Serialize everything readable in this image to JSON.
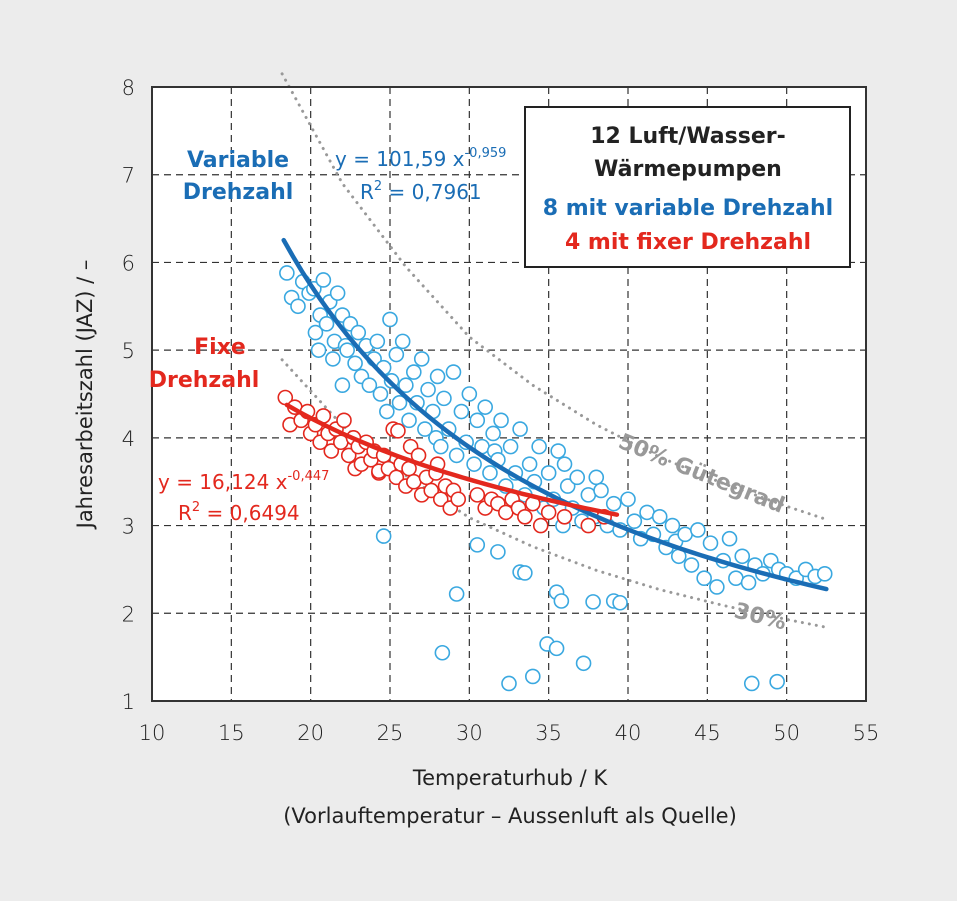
{
  "chart_data": {
    "type": "scatter",
    "xlabel": "Temperaturhub / K",
    "xlabel_sub": "(Vorlauftemperatur – Aussenluft als Quelle)",
    "ylabel": "Jahresarbeitszahl (JAZ) / –",
    "xlim": [
      10,
      55
    ],
    "ylim": [
      1,
      8
    ],
    "xticks": [
      "10",
      "15",
      "20",
      "25",
      "30",
      "35",
      "40",
      "45",
      "50",
      "55"
    ],
    "yticks": [
      "1",
      "2",
      "3",
      "4",
      "5",
      "6",
      "7",
      "8"
    ],
    "grid": true,
    "legend_box": {
      "line1": "12 Luft/Wasser-",
      "line2": "Wärmepumpen",
      "line3": "8 mit variable Drehzahl",
      "line4": "4 mit fixer Drehzahl",
      "placement": "top-right"
    },
    "colors": {
      "variable_points": "#3aa8e0",
      "variable_fit": "#1a6db5",
      "fixed": "#e3281e",
      "guetegrad": "#999999"
    },
    "series": [
      {
        "name": "Variable Drehzahl",
        "name_line1": "Variable",
        "name_line2": "Drehzahl",
        "fit": {
          "a": 101.59,
          "b": -0.959,
          "range": [
            18.3,
            52.5
          ]
        },
        "equation": "y = 101,59 x",
        "exponent": "-0,959",
        "r2_label": "R",
        "r2_sup": "2",
        "r2_value": " = 0,7961",
        "points": [
          [
            18.5,
            5.88
          ],
          [
            18.8,
            5.6
          ],
          [
            19.2,
            5.5
          ],
          [
            19.5,
            5.78
          ],
          [
            19.9,
            5.65
          ],
          [
            20.2,
            5.7
          ],
          [
            20.3,
            5.2
          ],
          [
            20.5,
            5.0
          ],
          [
            20.6,
            5.4
          ],
          [
            20.8,
            5.8
          ],
          [
            21.0,
            5.3
          ],
          [
            21.2,
            5.55
          ],
          [
            21.4,
            4.9
          ],
          [
            21.5,
            5.1
          ],
          [
            21.7,
            5.65
          ],
          [
            22.0,
            5.4
          ],
          [
            22.0,
            4.6
          ],
          [
            22.2,
            5.05
          ],
          [
            22.3,
            5.0
          ],
          [
            22.5,
            5.3
          ],
          [
            22.8,
            4.85
          ],
          [
            23.0,
            5.2
          ],
          [
            23.2,
            4.7
          ],
          [
            23.5,
            5.05
          ],
          [
            23.7,
            4.6
          ],
          [
            24.0,
            4.9
          ],
          [
            24.2,
            5.1
          ],
          [
            24.4,
            4.5
          ],
          [
            24.6,
            4.8
          ],
          [
            24.8,
            4.3
          ],
          [
            25.0,
            5.35
          ],
          [
            25.1,
            4.65
          ],
          [
            25.4,
            4.95
          ],
          [
            25.6,
            4.4
          ],
          [
            25.8,
            5.1
          ],
          [
            26.0,
            4.6
          ],
          [
            26.2,
            4.2
          ],
          [
            26.5,
            4.75
          ],
          [
            26.7,
            4.4
          ],
          [
            27.0,
            4.9
          ],
          [
            27.2,
            4.1
          ],
          [
            27.4,
            4.55
          ],
          [
            27.7,
            4.3
          ],
          [
            27.9,
            4.0
          ],
          [
            28.0,
            4.7
          ],
          [
            28.2,
            3.9
          ],
          [
            28.4,
            4.45
          ],
          [
            28.7,
            4.1
          ],
          [
            29.0,
            4.75
          ],
          [
            29.2,
            3.8
          ],
          [
            29.5,
            4.3
          ],
          [
            29.8,
            3.95
          ],
          [
            30.0,
            4.5
          ],
          [
            30.3,
            3.7
          ],
          [
            30.5,
            4.2
          ],
          [
            30.8,
            3.9
          ],
          [
            31.0,
            4.35
          ],
          [
            31.3,
            3.6
          ],
          [
            31.5,
            4.05
          ],
          [
            31.6,
            3.85
          ],
          [
            31.8,
            3.75
          ],
          [
            32.0,
            4.2
          ],
          [
            32.3,
            3.45
          ],
          [
            32.6,
            3.9
          ],
          [
            32.9,
            3.6
          ],
          [
            33.2,
            4.1
          ],
          [
            33.5,
            3.35
          ],
          [
            33.8,
            3.7
          ],
          [
            34.1,
            3.5
          ],
          [
            34.4,
            3.9
          ],
          [
            34.7,
            3.2
          ],
          [
            35.0,
            3.6
          ],
          [
            35.3,
            3.3
          ],
          [
            35.6,
            3.85
          ],
          [
            35.9,
            3.0
          ],
          [
            36.0,
            3.7
          ],
          [
            36.2,
            3.45
          ],
          [
            36.5,
            3.2
          ],
          [
            36.8,
            3.55
          ],
          [
            37.1,
            3.05
          ],
          [
            37.5,
            3.35
          ],
          [
            37.9,
            3.1
          ],
          [
            38.0,
            3.55
          ],
          [
            38.3,
            3.4
          ],
          [
            38.7,
            3.0
          ],
          [
            39.1,
            3.25
          ],
          [
            39.5,
            2.95
          ],
          [
            40.0,
            3.3
          ],
          [
            40.4,
            3.05
          ],
          [
            40.8,
            2.85
          ],
          [
            41.2,
            3.15
          ],
          [
            41.6,
            2.9
          ],
          [
            42.0,
            3.1
          ],
          [
            42.4,
            2.75
          ],
          [
            42.8,
            3.0
          ],
          [
            43.0,
            2.82
          ],
          [
            43.2,
            2.65
          ],
          [
            43.6,
            2.9
          ],
          [
            44.0,
            2.55
          ],
          [
            44.4,
            2.95
          ],
          [
            44.8,
            2.4
          ],
          [
            45.2,
            2.8
          ],
          [
            45.6,
            2.3
          ],
          [
            46.0,
            2.6
          ],
          [
            46.4,
            2.85
          ],
          [
            46.8,
            2.4
          ],
          [
            47.2,
            2.65
          ],
          [
            47.6,
            2.35
          ],
          [
            48.0,
            2.55
          ],
          [
            48.5,
            2.45
          ],
          [
            49.0,
            2.6
          ],
          [
            49.5,
            2.5
          ],
          [
            50.0,
            2.45
          ],
          [
            50.6,
            2.4
          ],
          [
            51.2,
            2.5
          ],
          [
            51.8,
            2.42
          ],
          [
            52.4,
            2.45
          ],
          [
            24.6,
            2.88
          ],
          [
            29.2,
            2.22
          ],
          [
            28.3,
            1.55
          ],
          [
            30.5,
            2.78
          ],
          [
            31.8,
            2.7
          ],
          [
            33.2,
            2.47
          ],
          [
            33.5,
            2.46
          ],
          [
            32.5,
            1.2
          ],
          [
            34.0,
            1.28
          ],
          [
            34.9,
            1.65
          ],
          [
            35.5,
            1.6
          ],
          [
            35.5,
            2.24
          ],
          [
            35.8,
            2.14
          ],
          [
            37.2,
            1.43
          ],
          [
            37.8,
            2.13
          ],
          [
            39.1,
            2.14
          ],
          [
            39.5,
            2.12
          ],
          [
            47.8,
            1.2
          ],
          [
            49.4,
            1.22
          ]
        ]
      },
      {
        "name": "Fixe Drehzahl",
        "name_line1": "Fixe",
        "name_line2": "Drehzahl",
        "fit": {
          "a": 16.124,
          "b": -0.447,
          "range": [
            18.5,
            39.3
          ]
        },
        "equation": "y = 16,124 x",
        "exponent": "-0,447",
        "r2_label": "R",
        "r2_sup": "2",
        "r2_value": " = 0,6494",
        "points": [
          [
            18.4,
            4.46
          ],
          [
            18.7,
            4.15
          ],
          [
            19.0,
            4.35
          ],
          [
            19.4,
            4.2
          ],
          [
            19.8,
            4.3
          ],
          [
            20.0,
            4.05
          ],
          [
            20.3,
            4.15
          ],
          [
            20.6,
            3.95
          ],
          [
            20.8,
            4.25
          ],
          [
            21.1,
            4.05
          ],
          [
            21.3,
            3.85
          ],
          [
            21.6,
            4.1
          ],
          [
            21.9,
            3.95
          ],
          [
            22.1,
            4.2
          ],
          [
            22.4,
            3.8
          ],
          [
            22.7,
            4.0
          ],
          [
            22.8,
            3.65
          ],
          [
            23.0,
            3.9
          ],
          [
            23.2,
            3.7
          ],
          [
            23.5,
            3.95
          ],
          [
            23.8,
            3.75
          ],
          [
            24.0,
            3.85
          ],
          [
            24.3,
            3.6
          ],
          [
            24.3,
            3.62
          ],
          [
            24.6,
            3.8
          ],
          [
            24.9,
            3.65
          ],
          [
            25.2,
            4.1
          ],
          [
            25.4,
            3.55
          ],
          [
            25.5,
            4.08
          ],
          [
            25.7,
            3.7
          ],
          [
            26.0,
            3.45
          ],
          [
            26.2,
            3.65
          ],
          [
            26.3,
            3.9
          ],
          [
            26.5,
            3.5
          ],
          [
            26.8,
            3.8
          ],
          [
            27.0,
            3.35
          ],
          [
            27.3,
            3.55
          ],
          [
            27.6,
            3.4
          ],
          [
            27.9,
            3.6
          ],
          [
            28.0,
            3.7
          ],
          [
            28.2,
            3.3
          ],
          [
            28.5,
            3.45
          ],
          [
            28.8,
            3.2
          ],
          [
            29.0,
            3.4
          ],
          [
            29.3,
            3.3
          ],
          [
            30.5,
            3.35
          ],
          [
            31.0,
            3.2
          ],
          [
            31.4,
            3.3
          ],
          [
            31.8,
            3.25
          ],
          [
            32.3,
            3.15
          ],
          [
            32.7,
            3.3
          ],
          [
            33.1,
            3.2
          ],
          [
            33.5,
            3.1
          ],
          [
            34.0,
            3.25
          ],
          [
            34.5,
            3.0
          ],
          [
            35.0,
            3.15
          ],
          [
            36.0,
            3.1
          ],
          [
            37.5,
            3.0
          ],
          [
            38.5,
            3.1
          ]
        ]
      }
    ],
    "guetegrad": [
      {
        "label": "50% Gütegrad",
        "points": [
          [
            18.2,
            8.15
          ],
          [
            22,
            6.9
          ],
          [
            26,
            5.95
          ],
          [
            30,
            5.15
          ],
          [
            34,
            4.6
          ],
          [
            38,
            4.15
          ],
          [
            42,
            3.78
          ],
          [
            46,
            3.48
          ],
          [
            50,
            3.22
          ],
          [
            52.5,
            3.07
          ]
        ]
      },
      {
        "label": "30%",
        "points": [
          [
            18.2,
            4.89
          ],
          [
            22,
            4.14
          ],
          [
            26,
            3.57
          ],
          [
            30,
            3.09
          ],
          [
            34,
            2.76
          ],
          [
            38,
            2.49
          ],
          [
            42,
            2.27
          ],
          [
            46,
            2.09
          ],
          [
            50,
            1.93
          ],
          [
            52.5,
            1.84
          ]
        ]
      }
    ]
  }
}
